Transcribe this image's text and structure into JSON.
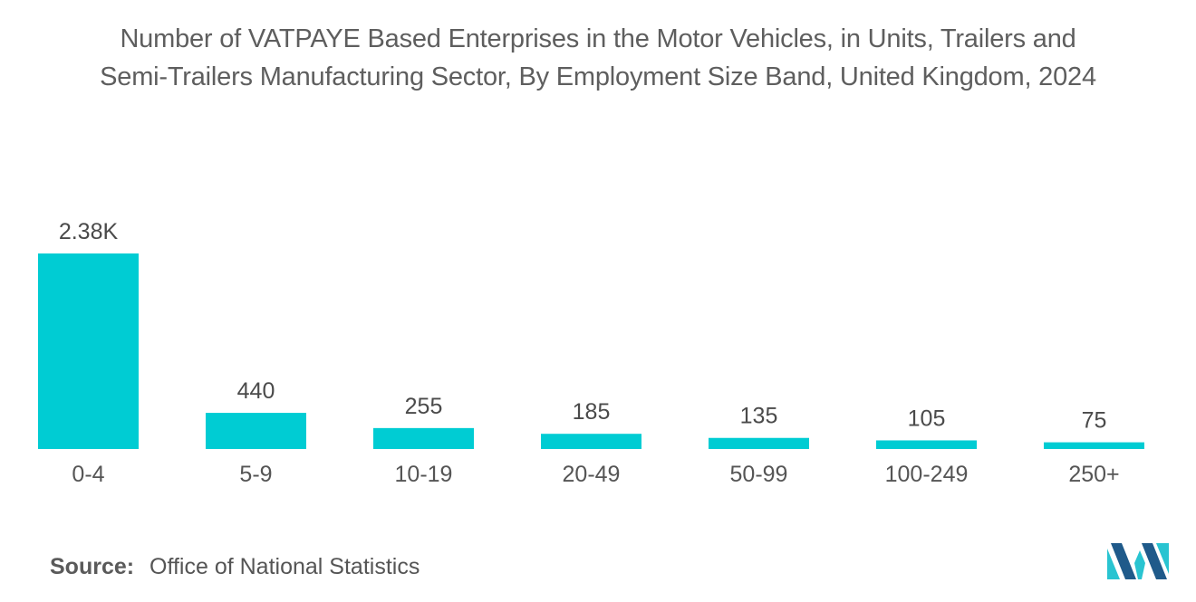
{
  "title": {
    "line1": "Number of VATPAYE Based Enterprises in the Motor Vehicles, in Units, Trailers and",
    "line2": "Semi-Trailers Manufacturing Sector, By Employment Size Band, United Kingdom, 2024"
  },
  "source": {
    "label": "Source:",
    "text": "Office of National Statistics"
  },
  "colors": {
    "bar": "#00ccd3",
    "logo_dark": "#1f5a8a",
    "logo_light": "#29c4d1"
  },
  "logo": {
    "icon": "mordor-logo-icon"
  },
  "chart_data": {
    "type": "bar",
    "title": "Number of VATPAYE Based Enterprises in the Motor Vehicles, in Units, Trailers and Semi-Trailers Manufacturing Sector, By Employment Size Band, United Kingdom, 2024",
    "xlabel": "",
    "ylabel": "",
    "categories": [
      "0-4",
      "5-9",
      "10-19",
      "20-49",
      "50-99",
      "100-249",
      "250+"
    ],
    "values": [
      2380,
      440,
      255,
      185,
      135,
      105,
      75
    ],
    "value_labels": [
      "2.38K",
      "440",
      "255",
      "185",
      "135",
      "105",
      "75"
    ],
    "ylim": [
      0,
      2380
    ],
    "grid": false,
    "legend": "none"
  }
}
